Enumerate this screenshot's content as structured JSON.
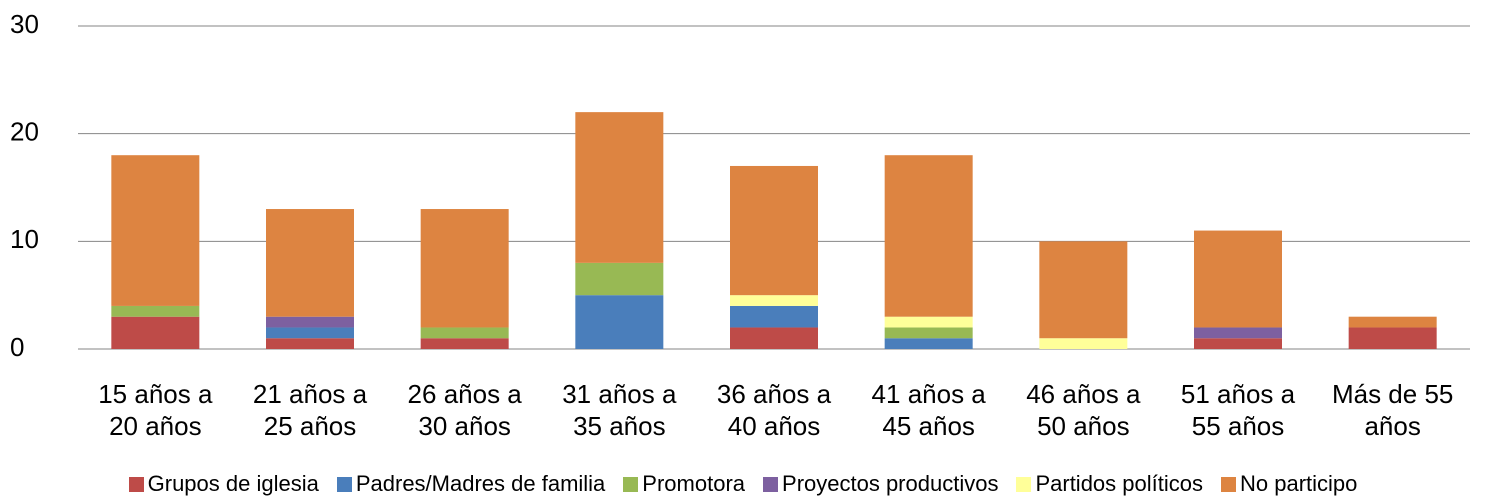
{
  "chart_data": {
    "type": "stacked_bar",
    "categories": [
      "15 años a 20 años",
      "21 años a 25 años",
      "26 años a 30 años",
      "31 años a 35 años",
      "36 años a 40 años",
      "41 años a 45 años",
      "46 años a 50 años",
      "51 años a 55 años",
      "Más de 55 años"
    ],
    "series": [
      {
        "name": "Grupos de iglesia",
        "color": "#be4b48",
        "values": [
          3,
          1,
          1,
          0,
          2,
          0,
          0,
          1,
          2
        ]
      },
      {
        "name": "Padres/Madres de familia",
        "color": "#4a7ebb",
        "values": [
          0,
          1,
          0,
          5,
          2,
          1,
          0,
          0,
          0
        ]
      },
      {
        "name": "Promotora",
        "color": "#98b954",
        "values": [
          1,
          0,
          1,
          3,
          0,
          1,
          0,
          0,
          0
        ]
      },
      {
        "name": "Proyectos productivos",
        "color": "#7d60a0",
        "values": [
          0,
          1,
          0,
          0,
          0,
          0,
          0,
          1,
          0
        ]
      },
      {
        "name": "Partidos políticos",
        "color": "#ffff99",
        "values": [
          0,
          0,
          0,
          0,
          1,
          1,
          1,
          0,
          0
        ]
      },
      {
        "name": "No participo",
        "color": "#dd8441",
        "values": [
          14,
          10,
          11,
          14,
          12,
          15,
          9,
          9,
          1
        ]
      }
    ],
    "ylim": [
      0,
      30
    ],
    "yticks": [
      0,
      10,
      20,
      30
    ],
    "grid": true,
    "legend": "bottom"
  }
}
